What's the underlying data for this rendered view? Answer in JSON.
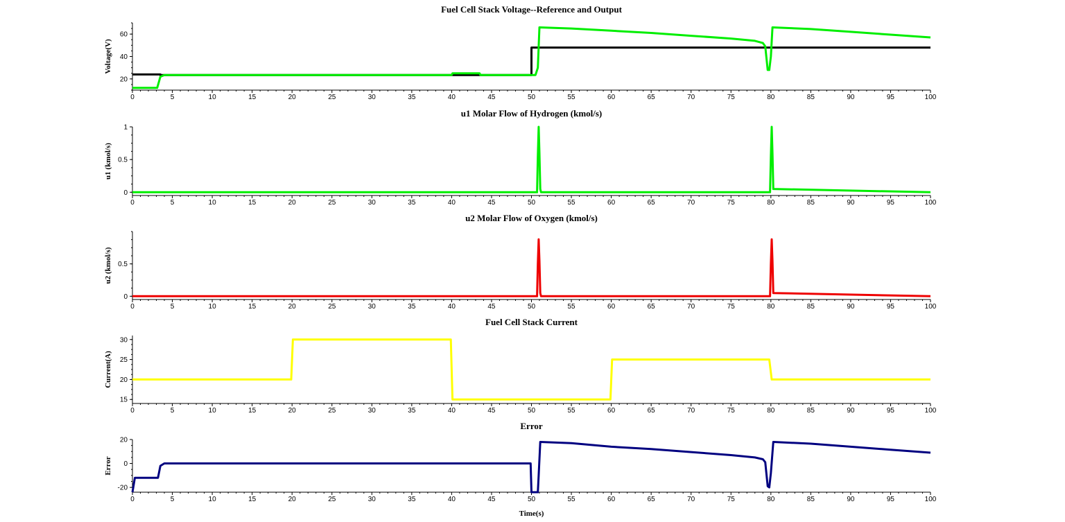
{
  "chart_data": [
    {
      "type": "line",
      "title": "Fuel Cell Stack Voltage--Reference and Output",
      "xlabel": "",
      "ylabel": "Voltage(V)",
      "xlim": [
        0,
        100
      ],
      "ylim": [
        10,
        70
      ],
      "xticks": [
        0,
        5,
        10,
        15,
        20,
        25,
        30,
        35,
        40,
        45,
        50,
        55,
        60,
        65,
        70,
        75,
        80,
        85,
        90,
        95,
        100
      ],
      "yticks": [
        20,
        40,
        60
      ],
      "ytick_labels": [
        "20",
        "40",
        "60"
      ],
      "grid": false,
      "series": [
        {
          "color": "#000000",
          "x": [
            0,
            3.5,
            3.5,
            50,
            50,
            100
          ],
          "y": [
            24,
            24,
            23.5,
            23.5,
            48,
            48
          ]
        },
        {
          "color": "#00ee00",
          "x": [
            0,
            3.1,
            3.5,
            4,
            40,
            40.1,
            43.5,
            43.6,
            50.5,
            50.8,
            51,
            55,
            60,
            65,
            70,
            75,
            78,
            79,
            79.3,
            79.6,
            79.8,
            80,
            80.2,
            85,
            90,
            95,
            100
          ],
          "y": [
            12,
            12,
            22,
            23.5,
            23.5,
            25,
            25,
            23.5,
            23.5,
            30,
            66,
            65,
            63,
            61,
            58.5,
            56,
            54,
            52,
            49,
            28,
            28,
            40,
            66,
            64.5,
            62,
            59.5,
            57
          ]
        }
      ]
    },
    {
      "type": "line",
      "title": "u1 Molar Flow of Hydrogen (kmol/s)",
      "xlabel": "",
      "ylabel": "u1 (kmol/s)",
      "xlim": [
        0,
        100
      ],
      "ylim": [
        -0.05,
        1
      ],
      "xticks": [
        0,
        5,
        10,
        15,
        20,
        25,
        30,
        35,
        40,
        45,
        50,
        55,
        60,
        65,
        70,
        75,
        80,
        85,
        90,
        95,
        100
      ],
      "yticks": [
        0,
        0.5,
        1
      ],
      "ytick_labels": [
        "0",
        "0.5",
        "1"
      ],
      "grid": false,
      "series": [
        {
          "color": "#00ee00",
          "x": [
            0,
            50.7,
            50.8,
            50.9,
            51.0,
            51.1,
            51.2,
            79.9,
            80.0,
            80.1,
            80.2,
            80.3,
            100
          ],
          "y": [
            0,
            0,
            0.55,
            1.0,
            0.6,
            0.05,
            0,
            0,
            0.55,
            1.0,
            0.6,
            0.05,
            0
          ]
        }
      ]
    },
    {
      "type": "line",
      "title": "u2 Molar Flow of Oxygen (kmol/s)",
      "xlabel": "",
      "ylabel": "u2 (kmol/s)",
      "xlim": [
        0,
        100
      ],
      "ylim": [
        -0.05,
        1
      ],
      "xticks": [
        0,
        5,
        10,
        15,
        20,
        25,
        30,
        35,
        40,
        45,
        50,
        55,
        60,
        65,
        70,
        75,
        80,
        85,
        90,
        95,
        100
      ],
      "yticks": [
        0,
        0.5
      ],
      "ytick_labels": [
        "0",
        "0.5"
      ],
      "grid": false,
      "series": [
        {
          "color": "#ee0000",
          "x": [
            0,
            50.7,
            50.8,
            50.9,
            51.0,
            51.1,
            51.2,
            79.9,
            80.0,
            80.1,
            80.2,
            80.3,
            100
          ],
          "y": [
            0,
            0,
            0.5,
            0.88,
            0.55,
            0.05,
            0,
            0,
            0.5,
            0.88,
            0.55,
            0.05,
            0
          ]
        }
      ]
    },
    {
      "type": "line",
      "title": "Fuel Cell Stack Current",
      "xlabel": "",
      "ylabel": "Current(A)",
      "xlim": [
        0,
        100
      ],
      "ylim": [
        14,
        31
      ],
      "xticks": [
        0,
        5,
        10,
        15,
        20,
        25,
        30,
        35,
        40,
        45,
        50,
        55,
        60,
        65,
        70,
        75,
        80,
        85,
        90,
        95,
        100
      ],
      "yticks": [
        15,
        20,
        25,
        30
      ],
      "ytick_labels": [
        "15",
        "20",
        "25",
        "30"
      ],
      "grid": false,
      "series": [
        {
          "color": "#ffff00",
          "x": [
            0,
            19.9,
            20.1,
            39.9,
            40.1,
            59.9,
            60.1,
            79.8,
            80.1,
            100
          ],
          "y": [
            20,
            20,
            30,
            30,
            15,
            15,
            25,
            25,
            20,
            20
          ]
        }
      ]
    },
    {
      "type": "line",
      "title": "Error",
      "xlabel": "Time(s)",
      "ylabel": "Error",
      "xlim": [
        0,
        100
      ],
      "ylim": [
        -24,
        20
      ],
      "xticks": [
        0,
        5,
        10,
        15,
        20,
        25,
        30,
        35,
        40,
        45,
        50,
        55,
        60,
        65,
        70,
        75,
        80,
        85,
        90,
        95,
        100
      ],
      "yticks": [
        -20,
        0,
        20
      ],
      "ytick_labels": [
        "-20",
        "0",
        "20"
      ],
      "grid": false,
      "series": [
        {
          "color": "#000080",
          "x": [
            0,
            0.1,
            0.3,
            3.2,
            3.5,
            4,
            49.9,
            50,
            50.8,
            50.9,
            51.1,
            55,
            60,
            65,
            70,
            75,
            78,
            79,
            79.3,
            79.6,
            79.8,
            80,
            80.3,
            85,
            90,
            95,
            100
          ],
          "y": [
            -24,
            -20,
            -12,
            -12,
            -2,
            0,
            0,
            -24,
            -24,
            -10,
            18,
            17,
            14,
            12,
            9.5,
            7,
            5,
            3.5,
            1,
            -19,
            -20,
            -8,
            18,
            16.5,
            14,
            11.5,
            9
          ]
        }
      ]
    }
  ]
}
